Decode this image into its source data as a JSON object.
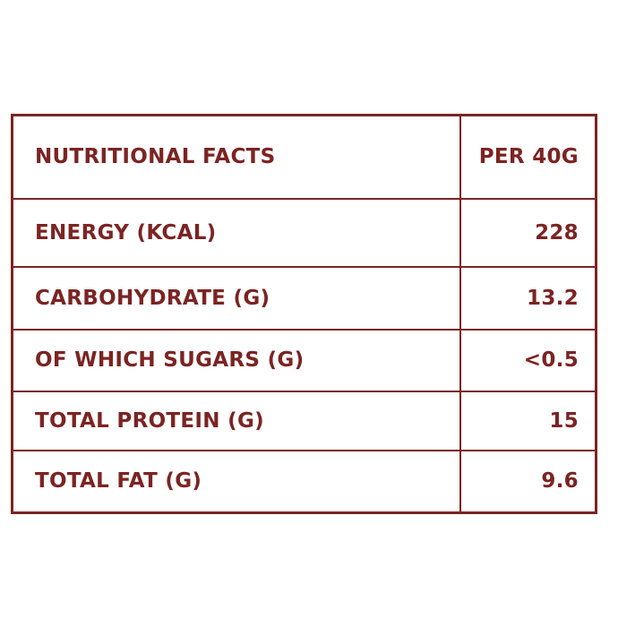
{
  "table": {
    "header": [
      "NUTRITIONAL FACTS",
      "PER 40G"
    ],
    "rows": [
      [
        "ENERGY (KCAL)",
        "228"
      ],
      [
        "CARBOHYDRATE (G)",
        "13.2"
      ],
      [
        "OF WHICH SUGARS (G)",
        "<0.5"
      ],
      [
        "TOTAL PROTEIN (G)",
        "15"
      ],
      [
        "TOTAL FAT (G)",
        "9.6"
      ]
    ]
  }
}
